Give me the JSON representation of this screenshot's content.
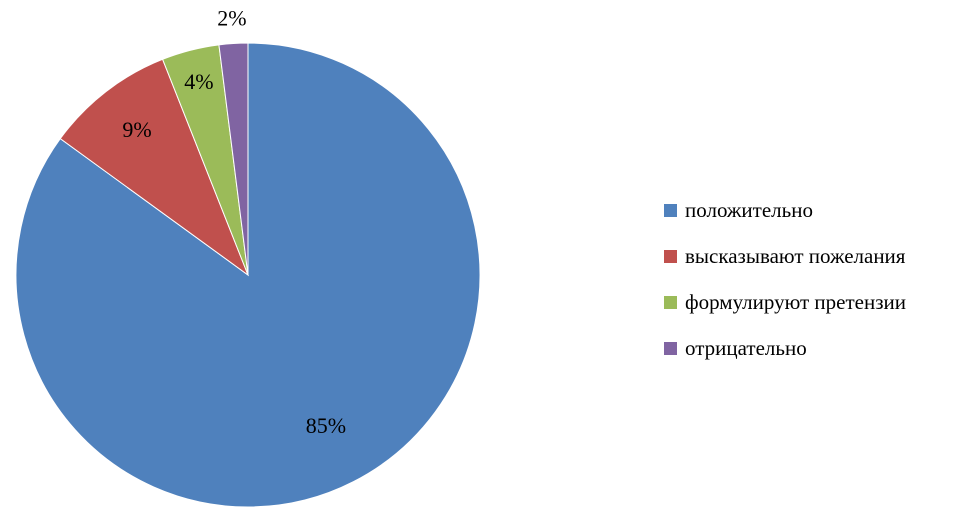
{
  "chart_data": {
    "type": "pie",
    "title": "",
    "categories": [
      "положительно",
      "высказывают пожелания",
      "формулируют претензии",
      "отрицательно"
    ],
    "values": [
      85,
      9,
      4,
      2
    ],
    "data_labels": [
      "85%",
      "9%",
      "4%",
      "2%"
    ],
    "colors": [
      "#4F81BD",
      "#C0504D",
      "#9BBB59",
      "#8064A2"
    ],
    "start_angle": "12 o'clock",
    "direction": "clockwise",
    "legend_position": "right"
  }
}
